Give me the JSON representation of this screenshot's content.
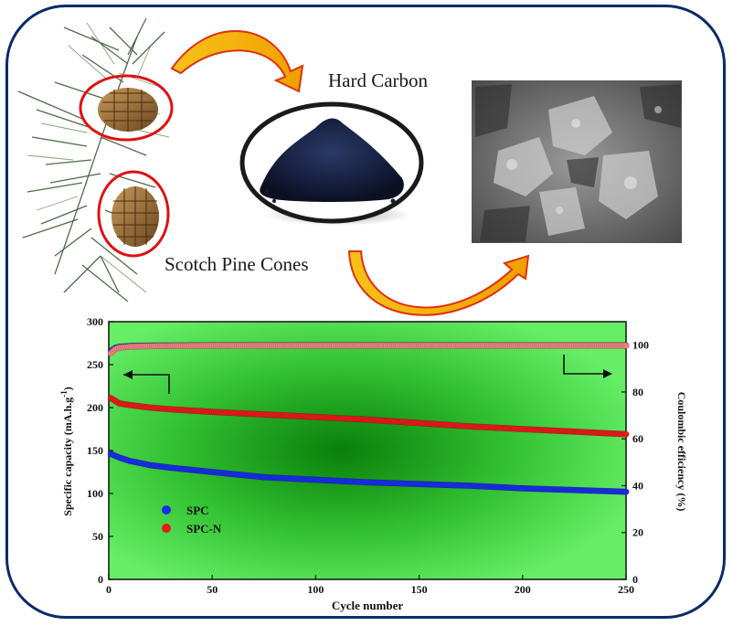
{
  "labels": {
    "hard_carbon": "Hard Carbon",
    "scotch_pine_cones": "Scotch Pine Cones"
  },
  "colors": {
    "frame": "#0a2a6a",
    "arrow_fill": "#f4b400",
    "arrow_stroke": "#e03010",
    "chart_bg_center": "#0f8f0f",
    "chart_bg_edge": "#5ee85e",
    "spc": "#1a2ee8",
    "spc_n": "#e81a1a",
    "ce_spc": "#2a3ad8",
    "ce_spcn": "#f08080",
    "circle_red": "#e01010"
  },
  "chart_data": {
    "type": "scatter",
    "xlabel": "Cycle number",
    "ylabel": "Specific capacity (mA.h.g",
    "ylabel_sup": "-1",
    "ylabel_close": ")",
    "y2label": "Coulombic efficiency (%)",
    "xlim": [
      0,
      250
    ],
    "ylim": [
      0,
      300
    ],
    "y2lim": [
      0,
      110
    ],
    "xticks": [
      "0",
      "50",
      "100",
      "150",
      "200",
      "250"
    ],
    "yticks": [
      "0",
      "50",
      "100",
      "150",
      "200",
      "250",
      "300"
    ],
    "y2ticks": [
      "0",
      "20",
      "40",
      "60",
      "80",
      "100"
    ],
    "legend_position": "lower-left",
    "series": [
      {
        "name": "SPC",
        "axis": "left",
        "x": [
          1,
          5,
          10,
          20,
          30,
          50,
          75,
          100,
          125,
          150,
          175,
          200,
          225,
          250
        ],
        "y": [
          146,
          142,
          138,
          133,
          130,
          125,
          119,
          116,
          113,
          111,
          109,
          106,
          104,
          102
        ]
      },
      {
        "name": "SPC-N",
        "axis": "left",
        "x": [
          1,
          5,
          10,
          20,
          30,
          50,
          75,
          100,
          125,
          150,
          175,
          200,
          225,
          250
        ],
        "y": [
          211,
          205,
          203,
          200,
          198,
          195,
          192,
          189,
          186,
          182,
          178,
          175,
          172,
          169
        ]
      },
      {
        "name": "",
        "axis": "right",
        "x": [
          1,
          3,
          5,
          10,
          20,
          50,
          100,
          150,
          200,
          250
        ],
        "y": [
          97.5,
          98.8,
          99.3,
          99.6,
          99.8,
          99.9,
          99.9,
          99.9,
          99.9,
          99.9
        ]
      },
      {
        "name": "",
        "axis": "right",
        "x": [
          1,
          3,
          5,
          10,
          20,
          50,
          100,
          150,
          200,
          250
        ],
        "y": [
          96.5,
          98.2,
          98.9,
          99.3,
          99.6,
          99.8,
          99.8,
          99.8,
          99.8,
          99.8
        ]
      }
    ]
  }
}
